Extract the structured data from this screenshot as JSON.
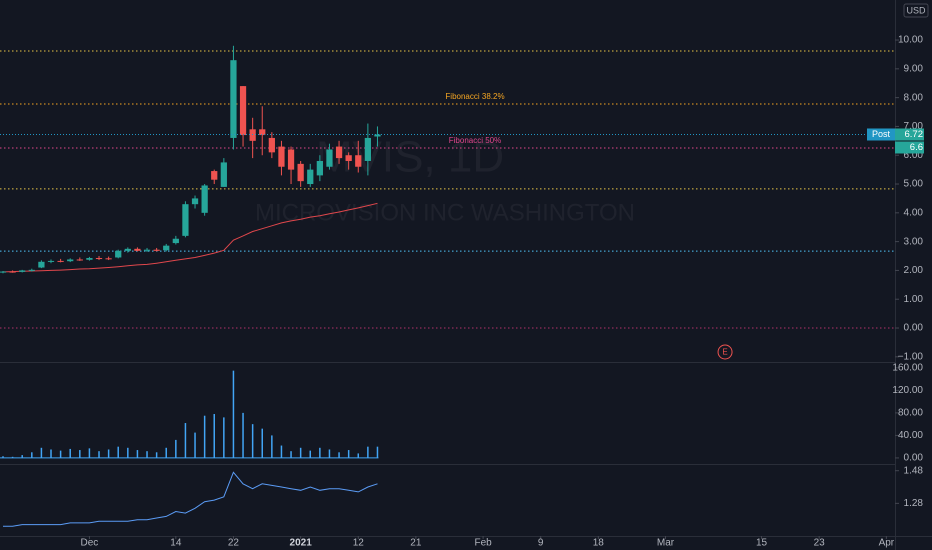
{
  "symbol_watermark": "MVIS, 1D",
  "company_watermark": "MICROVISION INC WASHINGTON",
  "currency": "USD",
  "chart_data": [
    {
      "type": "candlestick",
      "up_color": "#26a69a",
      "down_color": "#ef5350",
      "xlim": [
        -0.3125,
        92.9
      ],
      "ylim": [
        -1.18,
        11.39
      ],
      "yticks": [
        {
          "value": 10,
          "label": "10.00"
        },
        {
          "value": 9,
          "label": "9.00"
        },
        {
          "value": 8,
          "label": "8.00"
        },
        {
          "value": 7,
          "label": "7.00"
        },
        {
          "value": 6,
          "label": "6.00"
        },
        {
          "value": 5,
          "label": "5.00"
        },
        {
          "value": 4,
          "label": "4.00"
        },
        {
          "value": 3,
          "label": "3.00"
        },
        {
          "value": 2,
          "label": "2.00"
        },
        {
          "value": 1,
          "label": "1.00"
        },
        {
          "value": 0,
          "label": "0.00"
        },
        {
          "value": -1,
          "label": "−1.00"
        }
      ],
      "open": [
        1.93,
        1.96,
        1.95,
        2.0,
        2.1,
        2.3,
        2.33,
        2.32,
        2.38,
        2.37,
        2.43,
        2.42,
        2.45,
        2.68,
        2.75,
        2.7,
        2.72,
        2.7,
        2.95,
        3.2,
        4.3,
        4.0,
        5.45,
        4.9,
        6.6,
        8.4,
        6.9,
        6.9,
        6.6,
        6.3,
        6.2,
        5.7,
        5.0,
        5.3,
        5.6,
        6.3,
        6.0,
        6.0,
        5.8,
        6.65
      ],
      "high": [
        1.98,
        2.0,
        2.02,
        2.06,
        2.35,
        2.38,
        2.4,
        2.42,
        2.45,
        2.47,
        2.5,
        2.48,
        2.72,
        2.8,
        2.8,
        2.78,
        2.78,
        2.92,
        3.2,
        4.4,
        4.6,
        5.0,
        5.5,
        5.9,
        9.8,
        8.4,
        7.3,
        7.7,
        6.8,
        6.5,
        6.3,
        5.8,
        5.7,
        6.0,
        6.4,
        6.5,
        6.1,
        6.5,
        7.1,
        7.0
      ],
      "low": [
        1.9,
        1.92,
        1.93,
        1.96,
        2.08,
        2.25,
        2.28,
        2.29,
        2.33,
        2.34,
        2.36,
        2.36,
        2.42,
        2.62,
        2.66,
        2.64,
        2.66,
        2.66,
        2.9,
        3.15,
        4.15,
        3.9,
        5.0,
        4.9,
        6.2,
        6.3,
        5.9,
        6.0,
        5.9,
        5.3,
        5.0,
        4.9,
        4.9,
        5.1,
        5.5,
        5.7,
        5.5,
        5.4,
        5.3,
        6.3
      ],
      "close": [
        1.96,
        1.95,
        2.0,
        2.02,
        2.3,
        2.33,
        2.3,
        2.38,
        2.36,
        2.43,
        2.4,
        2.4,
        2.68,
        2.75,
        2.68,
        2.72,
        2.68,
        2.86,
        3.1,
        4.3,
        4.5,
        4.95,
        5.15,
        5.75,
        9.3,
        6.7,
        6.5,
        6.7,
        6.1,
        5.6,
        5.5,
        5.1,
        5.5,
        5.8,
        6.2,
        5.9,
        5.8,
        5.6,
        6.6,
        6.72
      ],
      "moving_average": {
        "color": "#e0474c",
        "values": [
          1.95,
          1.96,
          1.97,
          1.98,
          1.99,
          2.0,
          2.01,
          2.03,
          2.05,
          2.06,
          2.08,
          2.1,
          2.13,
          2.16,
          2.19,
          2.21,
          2.25,
          2.3,
          2.35,
          2.4,
          2.45,
          2.52,
          2.6,
          2.7,
          3.05,
          3.2,
          3.35,
          3.45,
          3.55,
          3.65,
          3.72,
          3.78,
          3.85,
          3.9,
          3.97,
          4.03,
          4.1,
          4.17,
          4.25,
          4.33
        ]
      },
      "levels": [
        {
          "value": 9.62,
          "color": "#e8c547"
        },
        {
          "value": 7.78,
          "color": "#f5a623",
          "label": "Fibonacci 38.2%"
        },
        {
          "value": 6.25,
          "color": "#e0468c",
          "label": "Fibonacci 50%"
        },
        {
          "value": 4.83,
          "color": "#e8c547"
        },
        {
          "value": 2.67,
          "color": "#4fc3f7"
        },
        {
          "value": 0,
          "color": "#b0306a"
        }
      ],
      "price_labels": [
        {
          "name": "Post",
          "value": 6.72,
          "color": "#2196c4",
          "value_color": "#26a69a"
        },
        {
          "value": 6.6,
          "value_color": "#26a69a"
        }
      ],
      "earnings_marker": {
        "label": "E",
        "x": 75.2,
        "color": "#ef5350"
      }
    },
    {
      "type": "bar",
      "color": "#42a5f5",
      "xlim": [
        -0.3125,
        92.9
      ],
      "ylim": [
        -9,
        168.6
      ],
      "yticks": [
        {
          "value": 160,
          "label": "160.00"
        },
        {
          "value": 120,
          "label": "120.00"
        },
        {
          "value": 80,
          "label": "80.00"
        },
        {
          "value": 40,
          "label": "40.00"
        },
        {
          "value": 0,
          "label": "0.00"
        }
      ],
      "values": [
        3,
        2,
        5,
        10,
        18,
        15,
        13,
        16,
        14,
        17,
        12,
        15,
        20,
        18,
        14,
        12,
        10,
        18,
        32,
        62,
        45,
        75,
        78,
        72,
        155,
        80,
        60,
        52,
        40,
        22,
        12,
        18,
        13,
        18,
        15,
        10,
        14,
        8,
        20,
        20
      ]
    },
    {
      "type": "line",
      "color": "#5b9cf6",
      "xlim": [
        -0.3125,
        92.9
      ],
      "ylim": [
        1.08,
        1.515
      ],
      "yticks": [
        1.48,
        1.28
      ],
      "values": [
        1.14,
        1.14,
        1.15,
        1.15,
        1.15,
        1.15,
        1.15,
        1.16,
        1.16,
        1.16,
        1.17,
        1.17,
        1.17,
        1.17,
        1.18,
        1.18,
        1.19,
        1.2,
        1.23,
        1.22,
        1.25,
        1.29,
        1.3,
        1.32,
        1.47,
        1.4,
        1.37,
        1.4,
        1.39,
        1.38,
        1.37,
        1.36,
        1.38,
        1.36,
        1.37,
        1.37,
        1.36,
        1.35,
        1.38,
        1.4
      ],
      "xticks": [
        {
          "value": 9,
          "label": "Dec"
        },
        {
          "value": 18,
          "label": "14"
        },
        {
          "value": 24,
          "label": "22"
        },
        {
          "value": 31,
          "label": "2021"
        },
        {
          "value": 37,
          "label": "12"
        },
        {
          "value": 43,
          "label": "21"
        },
        {
          "value": 50,
          "label": "Feb"
        },
        {
          "value": 56,
          "label": "9"
        },
        {
          "value": 62,
          "label": "18"
        },
        {
          "value": 69,
          "label": "Mar"
        },
        {
          "value": 79,
          "label": "15"
        },
        {
          "value": 85,
          "label": "23"
        },
        {
          "value": 92,
          "label": "Apr"
        }
      ]
    }
  ]
}
